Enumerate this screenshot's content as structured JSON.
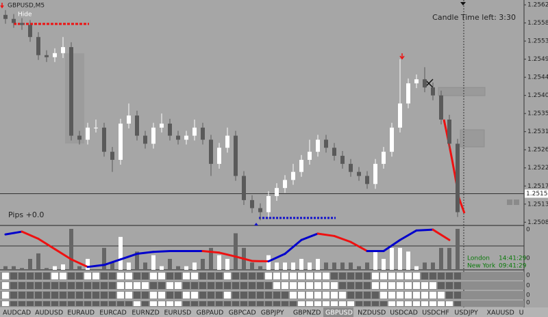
{
  "window": {
    "symbol": "GBPUSD,M5",
    "hide_button": "Hide",
    "candle_timer": "Candle Time left: 3:30",
    "pips": "Pips +0.0",
    "sessions": [
      {
        "name": "London",
        "time": "14:41:29"
      },
      {
        "name": "New York",
        "time": "09:41:29"
      }
    ],
    "window_labels": [
      "0",
      "0",
      "0",
      "0",
      "0",
      "0"
    ],
    "tabs": [
      "AUDCAD",
      "AUDUSD",
      "EURAUD",
      "EURCAD",
      "EURNZD",
      "EURUSD",
      "GBPAUD",
      "GBPCAD",
      "GBPJPY",
      "GBPNZD",
      "GBPUSD",
      "NZDUSD",
      "USDCAD",
      "USDCHF",
      "USDJPY",
      "XAUUSD",
      "U"
    ],
    "active_tab": "GBPUSD"
  },
  "chart_data": {
    "type": "candlestick",
    "up_color": "#ffffff",
    "down_color": "#5a5a5a",
    "ylim": [
      1.25077,
      1.25637
    ],
    "yticks": [
      1.25625,
      {
        "value": 1.2558,
        "label": "1.25580"
      },
      1.25535,
      {
        "value": 1.2549,
        "label": "1.25490"
      },
      1.25445,
      {
        "value": 1.254,
        "label": "1.25400"
      },
      1.25355,
      {
        "value": 1.2531,
        "label": "1.25310"
      },
      1.25265,
      {
        "value": 1.2522,
        "label": "1.25220"
      },
      1.25175,
      {
        "value": 1.2513,
        "label": "1.25130"
      },
      1.25085
    ],
    "current_price": 1.25156,
    "candles": [
      [
        1.256,
        1.25612,
        1.25578,
        1.2559
      ],
      [
        1.2559,
        1.25602,
        1.25568,
        1.2558
      ],
      [
        1.2558,
        1.25592,
        1.25563,
        1.25575
      ],
      [
        1.25575,
        1.25587,
        1.25533,
        1.25545
      ],
      [
        1.25545,
        1.25557,
        1.25488,
        1.255
      ],
      [
        1.255,
        1.25512,
        1.25483,
        1.25495
      ],
      [
        1.25495,
        1.25517,
        1.25483,
        1.25505
      ],
      [
        1.25505,
        1.25545,
        1.25493,
        1.2552
      ],
      [
        1.2552,
        1.25532,
        1.25288,
        1.253
      ],
      [
        1.253,
        1.25312,
        1.25278,
        1.2529
      ],
      [
        1.2529,
        1.25332,
        1.25278,
        1.2532
      ],
      [
        1.2532,
        1.2534,
        1.25308,
        1.2532
      ],
      [
        1.2532,
        1.25332,
        1.25248,
        1.2526
      ],
      [
        1.2526,
        1.25272,
        1.2521,
        1.2524
      ],
      [
        1.2524,
        1.25342,
        1.25228,
        1.2533
      ],
      [
        1.2533,
        1.2538,
        1.25318,
        1.2535
      ],
      [
        1.2535,
        1.25362,
        1.25288,
        1.253
      ],
      [
        1.253,
        1.25312,
        1.25268,
        1.2528
      ],
      [
        1.2528,
        1.25332,
        1.25268,
        1.2532
      ],
      [
        1.2532,
        1.25355,
        1.25308,
        1.2533
      ],
      [
        1.2533,
        1.25342,
        1.25288,
        1.253
      ],
      [
        1.253,
        1.25312,
        1.25278,
        1.2529
      ],
      [
        1.2529,
        1.25312,
        1.25278,
        1.253
      ],
      [
        1.253,
        1.2534,
        1.25288,
        1.2532
      ],
      [
        1.2532,
        1.25332,
        1.25278,
        1.2529
      ],
      [
        1.2529,
        1.25302,
        1.252,
        1.2523
      ],
      [
        1.2523,
        1.25282,
        1.25218,
        1.2527
      ],
      [
        1.2527,
        1.2532,
        1.25258,
        1.253
      ],
      [
        1.253,
        1.25312,
        1.25188,
        1.252
      ],
      [
        1.252,
        1.25212,
        1.25128,
        1.2514
      ],
      [
        1.2514,
        1.25152,
        1.25108,
        1.2512
      ],
      [
        1.2512,
        1.25132,
        1.2509,
        1.2511
      ],
      [
        1.2511,
        1.25162,
        1.25098,
        1.2515
      ],
      [
        1.2515,
        1.25182,
        1.25138,
        1.2517
      ],
      [
        1.2517,
        1.25202,
        1.25158,
        1.2519
      ],
      [
        1.2519,
        1.2523,
        1.25178,
        1.2521
      ],
      [
        1.2521,
        1.25252,
        1.25198,
        1.2524
      ],
      [
        1.2524,
        1.2529,
        1.25228,
        1.2526
      ],
      [
        1.2526,
        1.25302,
        1.25248,
        1.2529
      ],
      [
        1.2529,
        1.25302,
        1.25258,
        1.2527
      ],
      [
        1.2527,
        1.25282,
        1.25238,
        1.2525
      ],
      [
        1.2525,
        1.25262,
        1.25218,
        1.2523
      ],
      [
        1.2523,
        1.25242,
        1.25198,
        1.2521
      ],
      [
        1.2521,
        1.25222,
        1.25188,
        1.252
      ],
      [
        1.252,
        1.25212,
        1.25168,
        1.2518
      ],
      [
        1.2518,
        1.25242,
        1.25168,
        1.2523
      ],
      [
        1.2523,
        1.25272,
        1.25218,
        1.2526
      ],
      [
        1.2526,
        1.25332,
        1.25248,
        1.2532
      ],
      [
        1.2532,
        1.2549,
        1.25308,
        1.2538
      ],
      [
        1.2538,
        1.25442,
        1.25368,
        1.2543
      ],
      [
        1.2543,
        1.25452,
        1.25418,
        1.2544
      ],
      [
        1.2544,
        1.2547,
        1.25408,
        1.2542
      ],
      [
        1.2542,
        1.25432,
        1.25388,
        1.254
      ],
      [
        1.254,
        1.25412,
        1.25328,
        1.2534
      ],
      [
        1.2534,
        1.25352,
        1.25268,
        1.2528
      ],
      [
        1.2528,
        1.25292,
        1.25098,
        1.2511
      ]
    ],
    "oscillator": {
      "ylim": [
        0,
        100
      ],
      "rise_color": "#0000cc",
      "fall_color": "#ee1111",
      "x": [
        0,
        2,
        4,
        6,
        8,
        10,
        12,
        14,
        16,
        18,
        20,
        22,
        24,
        26,
        28,
        30,
        32,
        34,
        36,
        38,
        40,
        42,
        44,
        46,
        48,
        50,
        52,
        54
      ],
      "values": [
        86,
        93,
        75,
        49,
        23,
        4,
        9,
        23,
        37,
        42,
        44,
        44,
        44,
        40,
        30,
        19,
        18,
        37,
        72,
        88,
        82,
        67,
        44,
        44,
        72,
        96,
        98,
        72
      ]
    }
  }
}
